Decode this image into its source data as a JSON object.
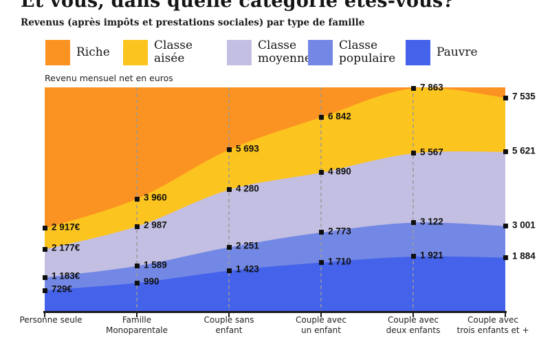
{
  "header": {
    "title": "Et vous, dans quelle catégorie êtes-vous?",
    "subtitle": "Revenus (après impôts et prestations sociales) par type de famille"
  },
  "legend": {
    "items": [
      {
        "label": "Riche",
        "color": "#FB9322"
      },
      {
        "label": "Classe aisée",
        "color": "#FCC41F"
      },
      {
        "label": "Classe moyenne",
        "color": "#C3BFE2"
      },
      {
        "label": "Classe populaire",
        "color": "#7388E4"
      },
      {
        "label": "Pauvre",
        "color": "#4462EA"
      }
    ]
  },
  "chart_data": {
    "type": "area",
    "stacked": true,
    "axis_title": "Revenu mensuel net en euros",
    "ylim": [
      0,
      7900
    ],
    "grid": "dashed-vertical-inner-categories",
    "legend_position": "top",
    "categories": [
      "Personne seule",
      "Famille\nMonoparentale",
      "Couple sans\nenfant",
      "Couple avec\nun enfant",
      "Couple avec\ndeux enfants",
      "Couple avec\ntrois enfants et +"
    ],
    "bands_bottom_to_top": [
      "Pauvre",
      "Classe populaire",
      "Classe moyenne",
      "Classe aisée",
      "Riche"
    ],
    "band_colors_bottom_to_top": [
      "#4462EA",
      "#7388E4",
      "#C3BFE2",
      "#FCC41F",
      "#FB9322"
    ],
    "boundaries": [
      {
        "name": "Pauvre / Classe populaire",
        "values": [
          729,
          990,
          1423,
          1710,
          1921,
          1884
        ],
        "labels": [
          "729€",
          "990",
          "1 423",
          "1 710",
          "1 921",
          "1 884"
        ]
      },
      {
        "name": "Classe populaire / Classe moyenne",
        "values": [
          1183,
          1589,
          2251,
          2773,
          3122,
          3001
        ],
        "labels": [
          "1 183€",
          "1 589",
          "2 251",
          "2 773",
          "3 122",
          "3 001"
        ]
      },
      {
        "name": "Classe moyenne / Classe aisée",
        "values": [
          2177,
          2987,
          4280,
          4890,
          5567,
          5621
        ],
        "labels": [
          "2 177€",
          "2 987",
          "4 280",
          "4 890",
          "5 567",
          "5 621"
        ]
      },
      {
        "name": "Classe aisée / Riche",
        "values": [
          2917,
          3960,
          5693,
          6842,
          7863,
          7535
        ],
        "labels": [
          "2 917€",
          "3 960",
          "5 693",
          "6 842",
          "7 863",
          "7 535"
        ]
      }
    ]
  }
}
